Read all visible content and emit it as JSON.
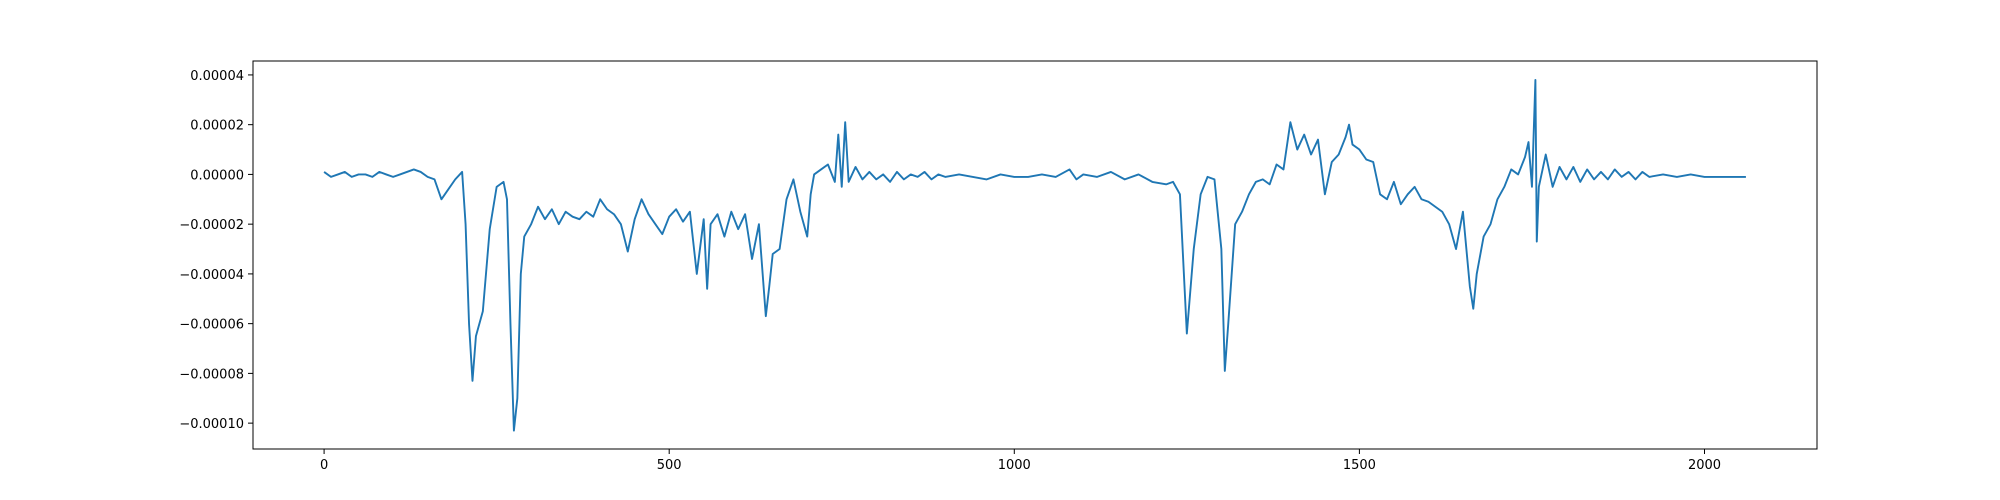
{
  "chart_data": {
    "type": "line",
    "color": "#1f77b4",
    "xlim": [
      -103,
      2163
    ],
    "ylim": [
      -0.0001104,
      4.56e-05
    ],
    "xticks": [
      0,
      500,
      1000,
      1500,
      2000
    ],
    "yticks": [
      {
        "value": 4e-05,
        "label": "0.00004"
      },
      {
        "value": 2e-05,
        "label": "0.00002"
      },
      {
        "value": 0,
        "label": "0.00000"
      },
      {
        "value": -2e-05,
        "label": "−0.00002"
      },
      {
        "value": -4e-05,
        "label": "−0.00004"
      },
      {
        "value": -6e-05,
        "label": "−0.00006"
      },
      {
        "value": -8e-05,
        "label": "−0.00008"
      },
      {
        "value": -0.0001,
        "label": "−0.00010"
      }
    ],
    "x": [
      0,
      10,
      20,
      30,
      40,
      50,
      60,
      70,
      80,
      90,
      100,
      110,
      120,
      130,
      140,
      150,
      160,
      170,
      180,
      190,
      200,
      205,
      210,
      215,
      220,
      230,
      240,
      250,
      260,
      265,
      270,
      275,
      280,
      285,
      290,
      300,
      310,
      320,
      330,
      340,
      350,
      360,
      370,
      380,
      390,
      400,
      410,
      420,
      430,
      440,
      450,
      460,
      470,
      480,
      490,
      500,
      510,
      520,
      530,
      540,
      550,
      555,
      560,
      570,
      580,
      590,
      600,
      610,
      620,
      630,
      640,
      645,
      650,
      660,
      670,
      680,
      690,
      700,
      705,
      710,
      720,
      730,
      740,
      745,
      750,
      755,
      760,
      770,
      780,
      790,
      800,
      810,
      820,
      830,
      840,
      850,
      860,
      870,
      880,
      890,
      900,
      920,
      940,
      960,
      980,
      1000,
      1020,
      1040,
      1060,
      1080,
      1090,
      1100,
      1120,
      1140,
      1160,
      1180,
      1200,
      1220,
      1230,
      1240,
      1250,
      1260,
      1270,
      1280,
      1290,
      1300,
      1305,
      1310,
      1320,
      1330,
      1340,
      1350,
      1360,
      1370,
      1380,
      1390,
      1400,
      1410,
      1420,
      1430,
      1440,
      1450,
      1460,
      1470,
      1480,
      1485,
      1490,
      1500,
      1510,
      1520,
      1530,
      1540,
      1550,
      1560,
      1570,
      1580,
      1590,
      1600,
      1610,
      1620,
      1630,
      1640,
      1650,
      1660,
      1665,
      1670,
      1680,
      1690,
      1700,
      1710,
      1720,
      1730,
      1740,
      1745,
      1750,
      1755,
      1757,
      1760,
      1770,
      1780,
      1790,
      1800,
      1810,
      1820,
      1830,
      1840,
      1850,
      1860,
      1870,
      1880,
      1890,
      1900,
      1910,
      1920,
      1940,
      1960,
      1980,
      2000,
      2020,
      2040,
      2060
    ],
    "values": [
      1e-06,
      -1e-06,
      0,
      1e-06,
      -1e-06,
      0,
      0,
      -1e-06,
      1e-06,
      0,
      -1e-06,
      0,
      1e-06,
      2e-06,
      1e-06,
      -1e-06,
      -2e-06,
      -1e-05,
      -6e-06,
      -2e-06,
      1e-06,
      -2e-05,
      -6e-05,
      -8.3e-05,
      -6.5e-05,
      -5.5e-05,
      -2.2e-05,
      -5e-06,
      -3e-06,
      -1e-05,
      -6e-05,
      -0.000103,
      -9e-05,
      -4e-05,
      -2.5e-05,
      -2e-05,
      -1.3e-05,
      -1.8e-05,
      -1.4e-05,
      -2e-05,
      -1.5e-05,
      -1.7e-05,
      -1.8e-05,
      -1.5e-05,
      -1.7e-05,
      -1e-05,
      -1.4e-05,
      -1.6e-05,
      -2e-05,
      -3.1e-05,
      -1.8e-05,
      -1e-05,
      -1.6e-05,
      -2e-05,
      -2.4e-05,
      -1.7e-05,
      -1.4e-05,
      -1.9e-05,
      -1.5e-05,
      -4e-05,
      -1.8e-05,
      -4.6e-05,
      -2e-05,
      -1.6e-05,
      -2.5e-05,
      -1.5e-05,
      -2.2e-05,
      -1.6e-05,
      -3.4e-05,
      -2e-05,
      -5.7e-05,
      -4.5e-05,
      -3.2e-05,
      -3e-05,
      -1e-05,
      -2e-06,
      -1.5e-05,
      -2.5e-05,
      -8e-06,
      0,
      2e-06,
      4e-06,
      -3e-06,
      1.6e-05,
      -5e-06,
      2.1e-05,
      -3e-06,
      3e-06,
      -2e-06,
      1e-06,
      -2e-06,
      0,
      -3e-06,
      1e-06,
      -2e-06,
      0,
      -1e-06,
      1e-06,
      -2e-06,
      0,
      -1e-06,
      0,
      -1e-06,
      -2e-06,
      0,
      -1e-06,
      -1e-06,
      0,
      -1e-06,
      2e-06,
      -2e-06,
      0,
      -1e-06,
      1e-06,
      -2e-06,
      0,
      -3e-06,
      -4e-06,
      -3e-06,
      -8e-06,
      -6.4e-05,
      -3e-05,
      -8e-06,
      -1e-06,
      -2e-06,
      -3e-05,
      -7.9e-05,
      -6e-05,
      -2e-05,
      -1.5e-05,
      -8e-06,
      -3e-06,
      -2e-06,
      -4e-06,
      4e-06,
      2e-06,
      2.1e-05,
      1e-05,
      1.6e-05,
      8e-06,
      1.4e-05,
      -8e-06,
      5e-06,
      8e-06,
      1.5e-05,
      2e-05,
      1.2e-05,
      1e-05,
      6e-06,
      5e-06,
      -8e-06,
      -1e-05,
      -3e-06,
      -1.2e-05,
      -8e-06,
      -5e-06,
      -1e-05,
      -1.1e-05,
      -1.3e-05,
      -1.5e-05,
      -2e-05,
      -3e-05,
      -1.5e-05,
      -4.5e-05,
      -5.4e-05,
      -4e-05,
      -2.5e-05,
      -2e-05,
      -1e-05,
      -5e-06,
      2e-06,
      0,
      7e-06,
      1.3e-05,
      -5e-06,
      3.8e-05,
      -2.7e-05,
      -5e-06,
      8e-06,
      -5e-06,
      3e-06,
      -2e-06,
      3e-06,
      -3e-06,
      2e-06,
      -2e-06,
      1e-06,
      -2e-06,
      2e-06,
      -1e-06,
      1e-06,
      -2e-06,
      1e-06,
      -1e-06,
      0,
      -1e-06,
      0,
      -1e-06,
      -1e-06,
      -1e-06,
      -1e-06
    ]
  }
}
